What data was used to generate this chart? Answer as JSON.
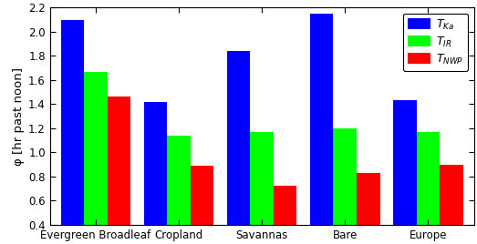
{
  "categories": [
    "Evergreen Broadleaf",
    "Cropland",
    "Savannas",
    "Bare",
    "Europe"
  ],
  "series": {
    "T_Ka": [
      2.1,
      1.42,
      1.84,
      2.15,
      1.43
    ],
    "T_IR": [
      1.67,
      1.14,
      1.17,
      1.2,
      1.17
    ],
    "T_NWP": [
      1.46,
      0.89,
      0.72,
      0.83,
      0.9
    ]
  },
  "colors": {
    "T_Ka": "#0000FF",
    "T_IR": "#00FF00",
    "T_NWP": "#FF0000"
  },
  "ylabel": "φ [hr past noon]",
  "ylim": [
    0.4,
    2.2
  ],
  "yticks": [
    0.4,
    0.6,
    0.8,
    1.0,
    1.2,
    1.4,
    1.6,
    1.8,
    2.0,
    2.2
  ],
  "bar_width": 0.28,
  "background_color": "#FFFFFF",
  "tick_fontsize": 8.5,
  "ylabel_fontsize": 9.5,
  "legend_fontsize": 9.0
}
